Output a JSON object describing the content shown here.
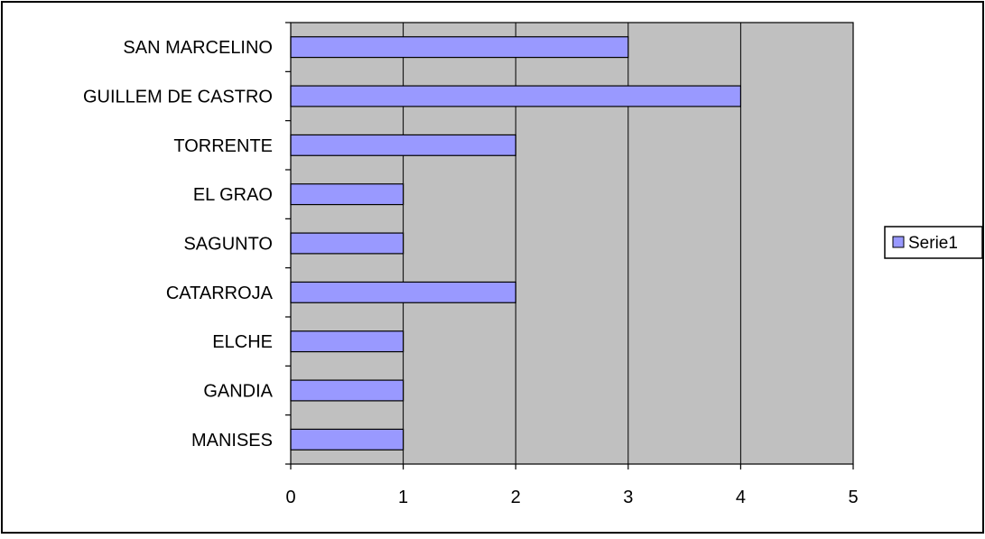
{
  "chart_data": {
    "type": "bar",
    "orientation": "horizontal",
    "categories": [
      "SAN MARCELINO",
      "GUILLEM DE CASTRO",
      "TORRENTE",
      "EL GRAO",
      "SAGUNTO",
      "CATARROJA",
      "ELCHE",
      "GANDIA",
      "MANISES"
    ],
    "series": [
      {
        "name": "Serie1",
        "values": [
          3,
          4,
          2,
          1,
          1,
          2,
          1,
          1,
          1
        ]
      }
    ],
    "xlim": [
      0,
      5
    ],
    "xticks": [
      0,
      1,
      2,
      3,
      4,
      5
    ],
    "grid": "vertical",
    "legend_position": "right",
    "colors": {
      "bar_fill": "#9999ff",
      "plot_background": "#c0c0c0",
      "gridline": "#000000",
      "frame": "#000000"
    }
  }
}
